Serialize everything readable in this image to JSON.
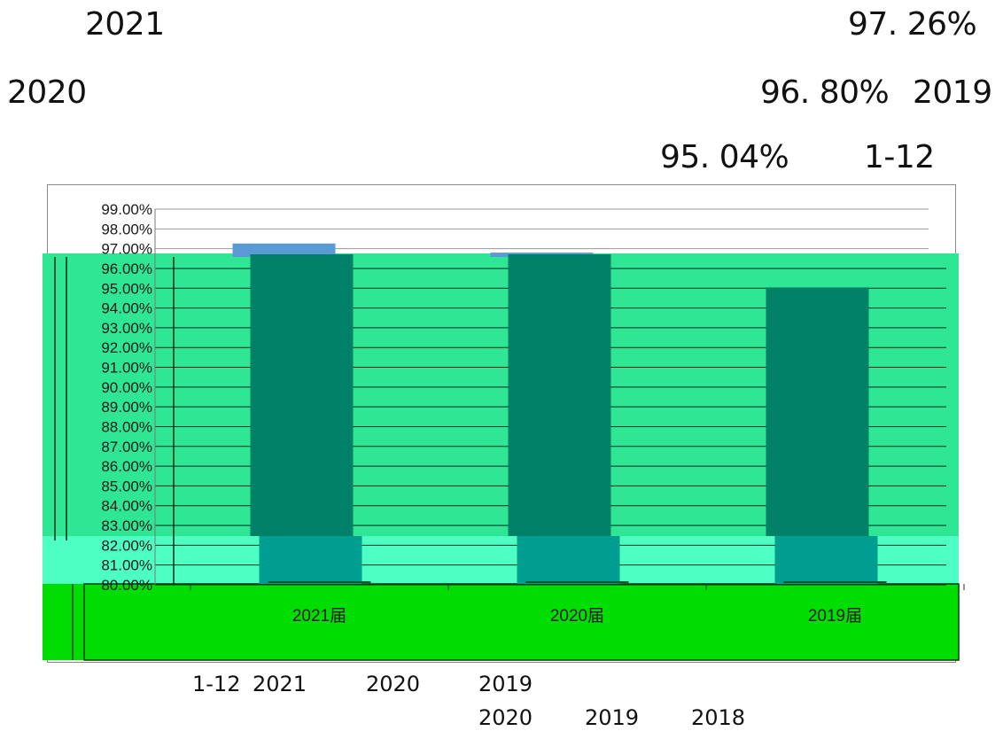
{
  "text_lines": {
    "line1_year": "2021",
    "line1_value": "97. 26%",
    "line2_year": "2020",
    "line2_value": "96. 80%",
    "line2_year_b": "2019",
    "line3_value": "95. 04%",
    "line3_range": "1-12",
    "caption1_range": "1-12",
    "caption1_y1": "2021",
    "caption1_y2": "2020",
    "caption1_y3": "2019",
    "caption2_y1": "2020",
    "caption2_y2": "2019",
    "caption2_y3": "2018"
  },
  "chart_data": {
    "type": "bar",
    "categories": [
      "2021届",
      "2020届",
      "2019届"
    ],
    "series": [
      {
        "values": [
          97.26,
          96.8,
          95.04
        ]
      }
    ],
    "ylim": [
      80,
      99
    ],
    "yticks": [
      "80.00%",
      "81.00%",
      "82.00%",
      "83.00%",
      "84.00%",
      "85.00%",
      "86.00%",
      "87.00%",
      "88.00%",
      "89.00%",
      "90.00%",
      "91.00%",
      "92.00%",
      "93.00%",
      "94.00%",
      "95.00%",
      "96.00%",
      "97.00%",
      "98.00%",
      "99.00%"
    ],
    "grid": true,
    "colors": {
      "bar_top": "#5b9bd5",
      "bar": "#008066",
      "bar_lower": "#009e91",
      "plot_bg": "#2ee693",
      "lower_band": "#4dffc3",
      "axis_band": "#00dd00"
    }
  }
}
